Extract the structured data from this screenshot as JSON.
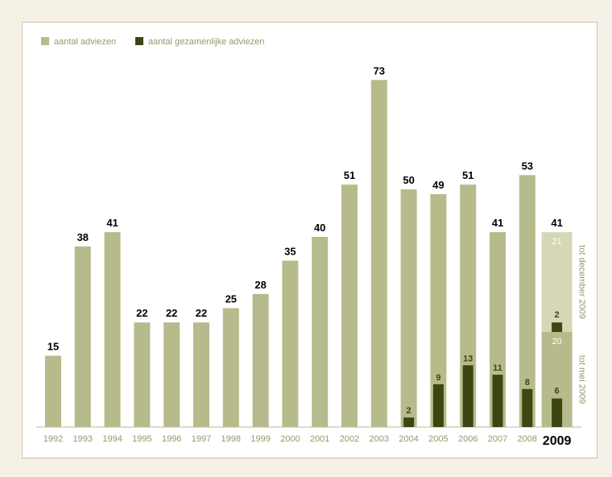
{
  "chart_data": {
    "type": "bar",
    "categories": [
      "1992",
      "1993",
      "1994",
      "1995",
      "1996",
      "1997",
      "1998",
      "1999",
      "2000",
      "2001",
      "2002",
      "2003",
      "2004",
      "2005",
      "2006",
      "2007",
      "2008",
      "2009"
    ],
    "series": [
      {
        "name": "aantal adviezen",
        "values": [
          15,
          38,
          41,
          22,
          22,
          22,
          25,
          28,
          35,
          40,
          51,
          73,
          50,
          49,
          51,
          41,
          53,
          41
        ]
      },
      {
        "name": "aantal gezamenlijke adviezen",
        "values": [
          null,
          null,
          null,
          null,
          null,
          null,
          null,
          null,
          null,
          null,
          null,
          null,
          2,
          9,
          13,
          11,
          8,
          6
        ]
      }
    ],
    "highlight_category": "2009",
    "breakdown_2009": {
      "segments": [
        {
          "label": "20",
          "value": 20,
          "note": "tot mei 2009"
        },
        {
          "label": "21",
          "value": 21,
          "note": "tot december 2009"
        }
      ],
      "joint_segments": [
        {
          "label": "6",
          "value": 6
        },
        {
          "label": "2",
          "value": 2
        }
      ]
    },
    "ylim": [
      0,
      80
    ],
    "legend_position": "top-left",
    "grid": false,
    "colors": {
      "adviezen": "#b7bb8c",
      "gezamenlijk": "#3d4510",
      "highlight_top": "#d6d7b7"
    }
  }
}
